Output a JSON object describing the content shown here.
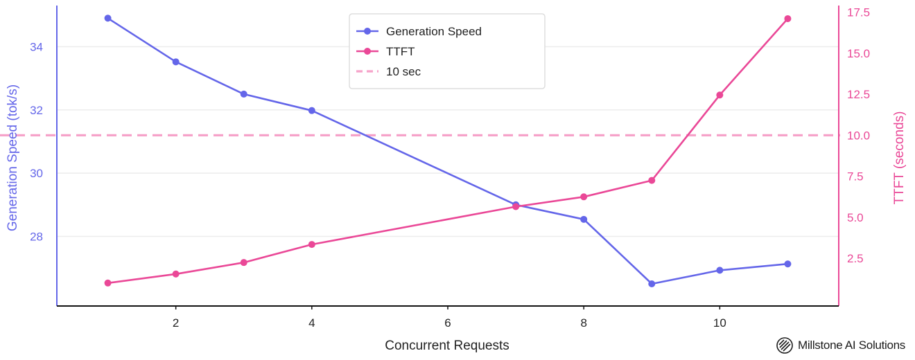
{
  "chart_data": {
    "type": "line",
    "x": [
      1,
      2,
      3,
      4,
      7,
      8,
      9,
      10,
      11
    ],
    "series": [
      {
        "name": "Generation Speed",
        "axis": "left",
        "color": "#6466e9",
        "values": [
          34.9,
          33.52,
          32.5,
          31.98,
          29.0,
          28.54,
          26.5,
          26.93,
          27.13
        ]
      },
      {
        "name": "TTFT",
        "axis": "right",
        "color": "#ea4897",
        "values": [
          1.0,
          1.55,
          2.25,
          3.35,
          5.65,
          6.25,
          7.25,
          12.45,
          17.1
        ]
      }
    ],
    "reference_line": {
      "name": "10 sec",
      "axis": "right",
      "value": 10,
      "color": "#f6a2c9",
      "style": "dashed"
    },
    "xlabel": "Concurrent Requests",
    "ylabel_left": "Generation Speed (tok/s)",
    "ylabel_right": "TTFT (seconds)",
    "xlim": [
      0.25,
      11.75
    ],
    "ylim_left": [
      25.8,
      35.3
    ],
    "ylim_right": [
      -0.4,
      17.9
    ],
    "xticks": [
      "2",
      "4",
      "6",
      "8",
      "10"
    ],
    "yticks_left": [
      "28",
      "30",
      "32",
      "34"
    ],
    "yticks_right": [
      "2.5",
      "5.0",
      "7.5",
      "10.0",
      "12.5",
      "15.0",
      "17.5"
    ],
    "grid": "horizontal",
    "legend_position": "top-center"
  },
  "brand": {
    "name": "Millstone AI Solutions"
  }
}
